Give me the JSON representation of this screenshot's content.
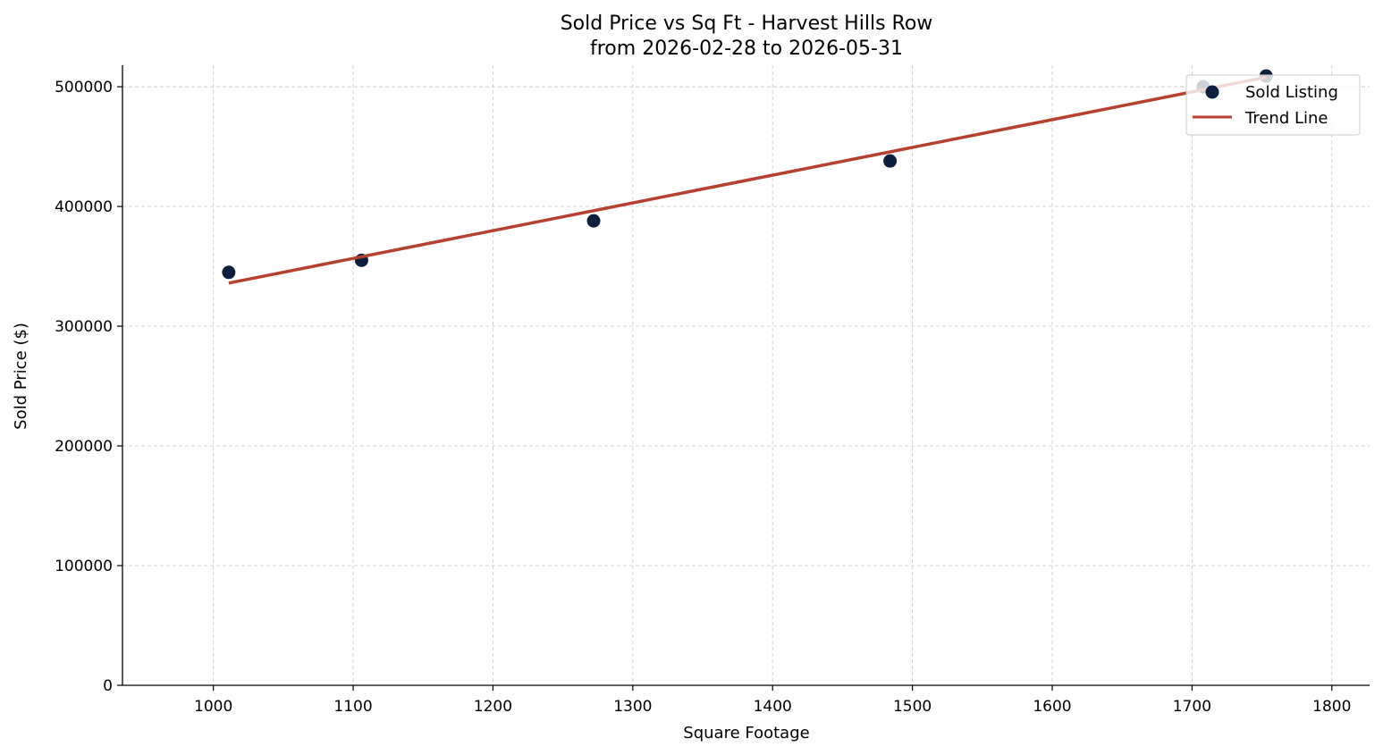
{
  "chart_data": {
    "type": "scatter",
    "title": "Sold Price vs Sq Ft - Harvest Hills Row",
    "subtitle": "from 2026-02-28 to 2026-05-31",
    "xlabel": "Square Footage",
    "ylabel": "Sold Price ($)",
    "xlim": [
      935,
      1827
    ],
    "ylim": [
      0,
      518000
    ],
    "x_ticks": [
      1000,
      1100,
      1200,
      1300,
      1400,
      1500,
      1600,
      1700,
      1800
    ],
    "y_ticks": [
      0,
      100000,
      200000,
      300000,
      400000,
      500000
    ],
    "grid": true,
    "legend_position": "top-right",
    "series": [
      {
        "name": "Sold Listing",
        "kind": "scatter",
        "color": "#0d1f3c",
        "points": [
          {
            "x": 1011,
            "y": 345000
          },
          {
            "x": 1106,
            "y": 355000
          },
          {
            "x": 1272,
            "y": 388000
          },
          {
            "x": 1484,
            "y": 438000
          },
          {
            "x": 1708,
            "y": 500000
          },
          {
            "x": 1753,
            "y": 509000
          }
        ]
      },
      {
        "name": "Trend Line",
        "kind": "line",
        "color": "#b5402f",
        "points": [
          {
            "x": 1011,
            "y": 336000
          },
          {
            "x": 1753,
            "y": 508000
          }
        ]
      }
    ]
  }
}
